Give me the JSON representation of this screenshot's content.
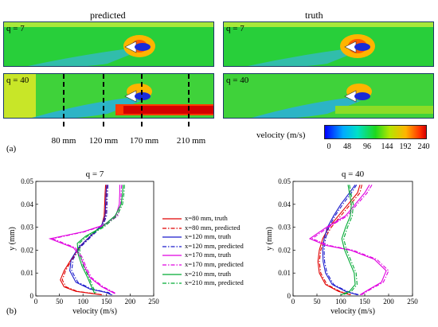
{
  "header": {
    "left_title": "predicted",
    "right_title": "truth"
  },
  "contours": {
    "q_labels": [
      "q = 7",
      "q = 40"
    ],
    "positions": [
      "80 mm",
      "120 mm",
      "170 mm",
      "210 mm"
    ],
    "position_values_mm": [
      80,
      120,
      170,
      210
    ]
  },
  "colorbar": {
    "label": "velocity (m/s)",
    "ticks": [
      "0",
      "48",
      "96",
      "144",
      "192",
      "240"
    ],
    "range": [
      0,
      240
    ],
    "colors": [
      "#0000ff",
      "#00aaff",
      "#00e0c8",
      "#1ed81e",
      "#b4e600",
      "#ffb400",
      "#ff3000",
      "#d40000"
    ]
  },
  "panel_tags": {
    "a": "(a)",
    "b": "(b)"
  },
  "chart_data": [
    {
      "type": "line",
      "title": "q = 7",
      "xlabel": "velocity (m/s)",
      "ylabel": "y (mm)",
      "xlim": [
        0,
        250
      ],
      "ylim": [
        0,
        0.05
      ],
      "xticks": [
        "0",
        "50",
        "100",
        "150",
        "200",
        "250"
      ],
      "yticks": [
        "0",
        "0.01",
        "0.02",
        "0.03",
        "0.04",
        "0.05"
      ],
      "series": [
        {
          "name": "x=80 mm, truth",
          "color": "#e00000",
          "dash": "solid",
          "points": [
            [
              148,
              0.0485
            ],
            [
              147,
              0.045
            ],
            [
              146,
              0.04
            ],
            [
              145,
              0.035
            ],
            [
              140,
              0.031
            ],
            [
              120,
              0.027
            ],
            [
              95,
              0.022
            ],
            [
              75,
              0.016
            ],
            [
              60,
              0.011
            ],
            [
              52,
              0.007
            ],
            [
              60,
              0.004
            ],
            [
              85,
              0.002
            ],
            [
              140,
              0.0005
            ]
          ]
        },
        {
          "name": "x=80 mm, predicted",
          "color": "#e00000",
          "dash": "dashdot",
          "points": [
            [
              151,
              0.0485
            ],
            [
              150,
              0.045
            ],
            [
              149,
              0.04
            ],
            [
              148,
              0.035
            ],
            [
              143,
              0.031
            ],
            [
              122,
              0.027
            ],
            [
              97,
              0.022
            ],
            [
              77,
              0.016
            ],
            [
              63,
              0.011
            ],
            [
              56,
              0.007
            ],
            [
              64,
              0.004
            ],
            [
              88,
              0.002
            ],
            [
              143,
              0.0005
            ]
          ]
        },
        {
          "name": "x=120 mm, truth",
          "color": "#1a1acc",
          "dash": "solid",
          "points": [
            [
              150,
              0.0485
            ],
            [
              149,
              0.045
            ],
            [
              148,
              0.04
            ],
            [
              147,
              0.035
            ],
            [
              140,
              0.031
            ],
            [
              115,
              0.026
            ],
            [
              90,
              0.021
            ],
            [
              75,
              0.016
            ],
            [
              72,
              0.011
            ],
            [
              85,
              0.006
            ],
            [
              115,
              0.003
            ],
            [
              150,
              0.0015
            ],
            [
              160,
              0.0005
            ]
          ]
        },
        {
          "name": "x=120 mm, predicted",
          "color": "#1a1acc",
          "dash": "dashdot",
          "points": [
            [
              153,
              0.0485
            ],
            [
              152,
              0.045
            ],
            [
              151,
              0.04
            ],
            [
              150,
              0.035
            ],
            [
              143,
              0.031
            ],
            [
              118,
              0.026
            ],
            [
              93,
              0.021
            ],
            [
              79,
              0.016
            ],
            [
              76,
              0.011
            ],
            [
              89,
              0.006
            ],
            [
              119,
              0.003
            ],
            [
              154,
              0.0015
            ],
            [
              162,
              0.0005
            ]
          ]
        },
        {
          "name": "x=170 mm, truth",
          "color": "#e000e0",
          "dash": "solid",
          "points": [
            [
              178,
              0.0485
            ],
            [
              178,
              0.045
            ],
            [
              177,
              0.04
            ],
            [
              170,
              0.035
            ],
            [
              145,
              0.031
            ],
            [
              100,
              0.028
            ],
            [
              30,
              0.025
            ],
            [
              80,
              0.021
            ],
            [
              95,
              0.017
            ],
            [
              105,
              0.012
            ],
            [
              115,
              0.008
            ],
            [
              140,
              0.004
            ],
            [
              168,
              0.001
            ]
          ]
        },
        {
          "name": "x=170 mm, predicted",
          "color": "#e000e0",
          "dash": "dashdot",
          "points": [
            [
              182,
              0.0485
            ],
            [
              181,
              0.045
            ],
            [
              180,
              0.04
            ],
            [
              174,
              0.035
            ],
            [
              148,
              0.031
            ],
            [
              103,
              0.028
            ],
            [
              36,
              0.025
            ],
            [
              84,
              0.021
            ],
            [
              98,
              0.017
            ],
            [
              108,
              0.012
            ],
            [
              118,
              0.008
            ],
            [
              143,
              0.004
            ],
            [
              171,
              0.001
            ]
          ]
        },
        {
          "name": "x=210 mm, truth",
          "color": "#00aa33",
          "dash": "solid",
          "points": [
            [
              185,
              0.0485
            ],
            [
              184,
              0.045
            ],
            [
              181,
              0.04
            ],
            [
              168,
              0.035
            ],
            [
              140,
              0.03
            ],
            [
              105,
              0.026
            ],
            [
              88,
              0.023
            ],
            [
              90,
              0.018
            ],
            [
              98,
              0.013
            ],
            [
              110,
              0.008
            ],
            [
              118,
              0.004
            ],
            [
              125,
              0.001
            ]
          ]
        },
        {
          "name": "x=210 mm, predicted",
          "color": "#00aa33",
          "dash": "dashdot",
          "points": [
            [
              188,
              0.0485
            ],
            [
              187,
              0.045
            ],
            [
              184,
              0.04
            ],
            [
              172,
              0.035
            ],
            [
              144,
              0.03
            ],
            [
              109,
              0.026
            ],
            [
              92,
              0.023
            ],
            [
              94,
              0.018
            ],
            [
              101,
              0.013
            ],
            [
              113,
              0.008
            ],
            [
              121,
              0.004
            ],
            [
              128,
              0.001
            ]
          ]
        }
      ]
    },
    {
      "type": "line",
      "title": "q = 40",
      "xlabel": "velocity (m/s)",
      "ylabel": "y (mm)",
      "xlim": [
        0,
        250
      ],
      "ylim": [
        0,
        0.05
      ],
      "xticks": [
        "0",
        "50",
        "100",
        "150",
        "200",
        "250"
      ],
      "yticks": [
        "0",
        "0.01",
        "0.02",
        "0.03",
        "0.04",
        "0.05"
      ],
      "series": [
        {
          "name": "x=80 mm, truth",
          "color": "#e00000",
          "dash": "solid",
          "points": [
            [
              140,
              0.0485
            ],
            [
              135,
              0.045
            ],
            [
              115,
              0.04
            ],
            [
              95,
              0.035
            ],
            [
              75,
              0.03
            ],
            [
              62,
              0.025
            ],
            [
              55,
              0.02
            ],
            [
              52,
              0.015
            ],
            [
              55,
              0.01
            ],
            [
              68,
              0.005
            ],
            [
              95,
              0.002
            ],
            [
              120,
              0.0005
            ]
          ]
        },
        {
          "name": "x=80 mm, predicted",
          "color": "#e00000",
          "dash": "dashdot",
          "points": [
            [
              144,
              0.0485
            ],
            [
              140,
              0.045
            ],
            [
              120,
              0.04
            ],
            [
              100,
              0.035
            ],
            [
              80,
              0.03
            ],
            [
              66,
              0.025
            ],
            [
              58,
              0.02
            ],
            [
              55,
              0.015
            ],
            [
              58,
              0.01
            ],
            [
              71,
              0.005
            ],
            [
              98,
              0.002
            ],
            [
              123,
              0.0005
            ]
          ]
        },
        {
          "name": "x=120 mm, truth",
          "color": "#1a1acc",
          "dash": "solid",
          "points": [
            [
              130,
              0.0485
            ],
            [
              118,
              0.045
            ],
            [
              100,
              0.04
            ],
            [
              85,
              0.035
            ],
            [
              72,
              0.03
            ],
            [
              65,
              0.025
            ],
            [
              62,
              0.02
            ],
            [
              63,
              0.015
            ],
            [
              68,
              0.01
            ],
            [
              82,
              0.005
            ],
            [
              110,
              0.002
            ],
            [
              135,
              0.0005
            ]
          ]
        },
        {
          "name": "x=120 mm, predicted",
          "color": "#1a1acc",
          "dash": "dashdot",
          "points": [
            [
              133,
              0.0485
            ],
            [
              122,
              0.045
            ],
            [
              104,
              0.04
            ],
            [
              88,
              0.035
            ],
            [
              75,
              0.03
            ],
            [
              68,
              0.025
            ],
            [
              65,
              0.02
            ],
            [
              66,
              0.015
            ],
            [
              71,
              0.01
            ],
            [
              85,
              0.005
            ],
            [
              113,
              0.002
            ],
            [
              138,
              0.0005
            ]
          ]
        },
        {
          "name": "x=170 mm, truth",
          "color": "#e000e0",
          "dash": "solid",
          "points": [
            [
              160,
              0.0485
            ],
            [
              150,
              0.045
            ],
            [
              130,
              0.04
            ],
            [
              110,
              0.035
            ],
            [
              70,
              0.03
            ],
            [
              35,
              0.025
            ],
            [
              70,
              0.022
            ],
            [
              120,
              0.02
            ],
            [
              170,
              0.016
            ],
            [
              195,
              0.011
            ],
            [
              185,
              0.006
            ],
            [
              160,
              0.003
            ],
            [
              140,
              0.0005
            ]
          ]
        },
        {
          "name": "x=170 mm, predicted",
          "color": "#e000e0",
          "dash": "dashdot",
          "points": [
            [
              165,
              0.0485
            ],
            [
              155,
              0.045
            ],
            [
              134,
              0.04
            ],
            [
              114,
              0.035
            ],
            [
              74,
              0.03
            ],
            [
              40,
              0.025
            ],
            [
              76,
              0.022
            ],
            [
              125,
              0.02
            ],
            [
              175,
              0.016
            ],
            [
              200,
              0.011
            ],
            [
              189,
              0.006
            ],
            [
              163,
              0.003
            ],
            [
              143,
              0.0005
            ]
          ]
        },
        {
          "name": "x=210 mm, truth",
          "color": "#00aa33",
          "dash": "solid",
          "points": [
            [
              115,
              0.0485
            ],
            [
              118,
              0.045
            ],
            [
              122,
              0.04
            ],
            [
              120,
              0.035
            ],
            [
              110,
              0.03
            ],
            [
              102,
              0.025
            ],
            [
              108,
              0.02
            ],
            [
              118,
              0.015
            ],
            [
              128,
              0.01
            ],
            [
              130,
              0.005
            ],
            [
              118,
              0.002
            ],
            [
              100,
              0.0005
            ]
          ]
        },
        {
          "name": "x=210 mm, predicted",
          "color": "#00aa33",
          "dash": "dashdot",
          "points": [
            [
              118,
              0.0485
            ],
            [
              121,
              0.045
            ],
            [
              126,
              0.04
            ],
            [
              124,
              0.035
            ],
            [
              114,
              0.03
            ],
            [
              106,
              0.025
            ],
            [
              112,
              0.02
            ],
            [
              122,
              0.015
            ],
            [
              132,
              0.01
            ],
            [
              134,
              0.005
            ],
            [
              122,
              0.002
            ],
            [
              104,
              0.0005
            ]
          ]
        }
      ]
    }
  ]
}
